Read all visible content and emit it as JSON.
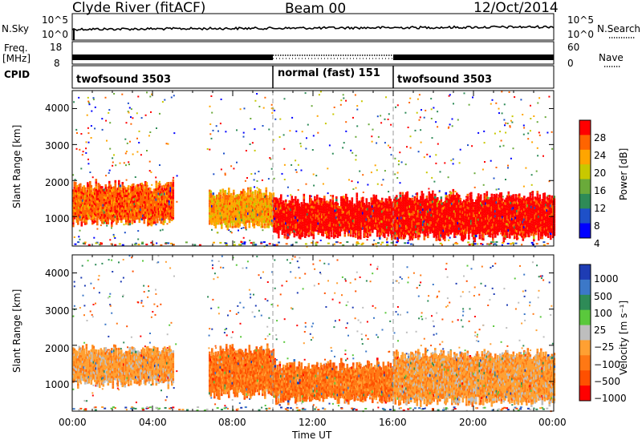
{
  "header": {
    "station": "Clyde River (fitACF)",
    "beam": "Beam 00",
    "date": "12/Oct/2014"
  },
  "strips": {
    "nsky_label": "N.Sky",
    "nsky_ticks": [
      "10^5",
      "10^0"
    ],
    "nsearch_label": "N.Search",
    "freq_label_1": "Freq.",
    "freq_label_2": "[MHz]",
    "freq_ticks": [
      "18",
      "8"
    ],
    "nave_ticks": [
      "60",
      "0"
    ],
    "nave_label": "Nave",
    "cpid_label": "CPID",
    "cpid_segments": [
      {
        "label": "twofsound 3503",
        "start_h": 0,
        "end_h": 10
      },
      {
        "label": "normal (fast) 151",
        "start_h": 10,
        "end_h": 16
      },
      {
        "label": "twofsound 3503",
        "start_h": 16,
        "end_h": 24
      }
    ]
  },
  "colors": {
    "power": [
      "#0000ff",
      "#1e50c8",
      "#2e8b57",
      "#6aaa3a",
      "#c8c800",
      "#ffa500",
      "#ff6400",
      "#ff0000"
    ],
    "velocity": [
      "#1e3cb4",
      "#3c78c8",
      "#2e8b57",
      "#5ac83c",
      "#bebebe",
      "#ffa032",
      "#ff7814",
      "#ff5000",
      "#ff0000"
    ]
  },
  "chart_data": [
    {
      "type": "heatmap",
      "name": "power",
      "ylabel": "Slant Range [km]",
      "ylim": [
        180,
        4500
      ],
      "yticks": [
        1000,
        2000,
        3000,
        4000
      ],
      "xlim": [
        0,
        24
      ],
      "xticks": [
        "00:00",
        "04:00",
        "08:00",
        "12:00",
        "16:00",
        "20:00",
        "00:00"
      ],
      "colorbar_label": "Power [dB]",
      "colorbar_ticks": [
        "4",
        "8",
        "12",
        "16",
        "20",
        "24",
        "28"
      ],
      "bands": [
        {
          "start_h": 0.0,
          "end_h": 5.0,
          "range_km": [
            800,
            1900
          ],
          "level_db": 24
        },
        {
          "start_h": 6.8,
          "end_h": 10.0,
          "range_km": [
            700,
            1700
          ],
          "level_db": 20
        },
        {
          "start_h": 10.0,
          "end_h": 16.0,
          "range_km": [
            450,
            1500
          ],
          "level_db": 28
        },
        {
          "start_h": 16.0,
          "end_h": 24.0,
          "range_km": [
            400,
            1600
          ],
          "level_db": 28
        }
      ]
    },
    {
      "type": "heatmap",
      "name": "velocity",
      "ylabel": "Slant Range [km]",
      "ylim": [
        180,
        4500
      ],
      "yticks": [
        1000,
        2000,
        3000,
        4000
      ],
      "xlim": [
        0,
        24
      ],
      "xticks": [
        "00:00",
        "04:00",
        "08:00",
        "12:00",
        "16:00",
        "20:00",
        "00:00"
      ],
      "xlabel": "Time UT",
      "colorbar_label": "Velocity [m s⁻¹]",
      "colorbar_ticks": [
        "1000",
        "500",
        "100",
        "25",
        "−25",
        "−100",
        "−500",
        "−1000"
      ],
      "bands": [
        {
          "start_h": 0.0,
          "end_h": 5.0,
          "range_km": [
            900,
            1900
          ],
          "level_ms": -100
        },
        {
          "start_h": 6.8,
          "end_h": 10.0,
          "range_km": [
            600,
            1900
          ],
          "level_ms": -150
        },
        {
          "start_h": 10.0,
          "end_h": 16.0,
          "range_km": [
            450,
            1500
          ],
          "level_ms": -400
        },
        {
          "start_h": 16.0,
          "end_h": 24.0,
          "range_km": [
            400,
            1800
          ],
          "level_ms": -100
        }
      ]
    }
  ]
}
